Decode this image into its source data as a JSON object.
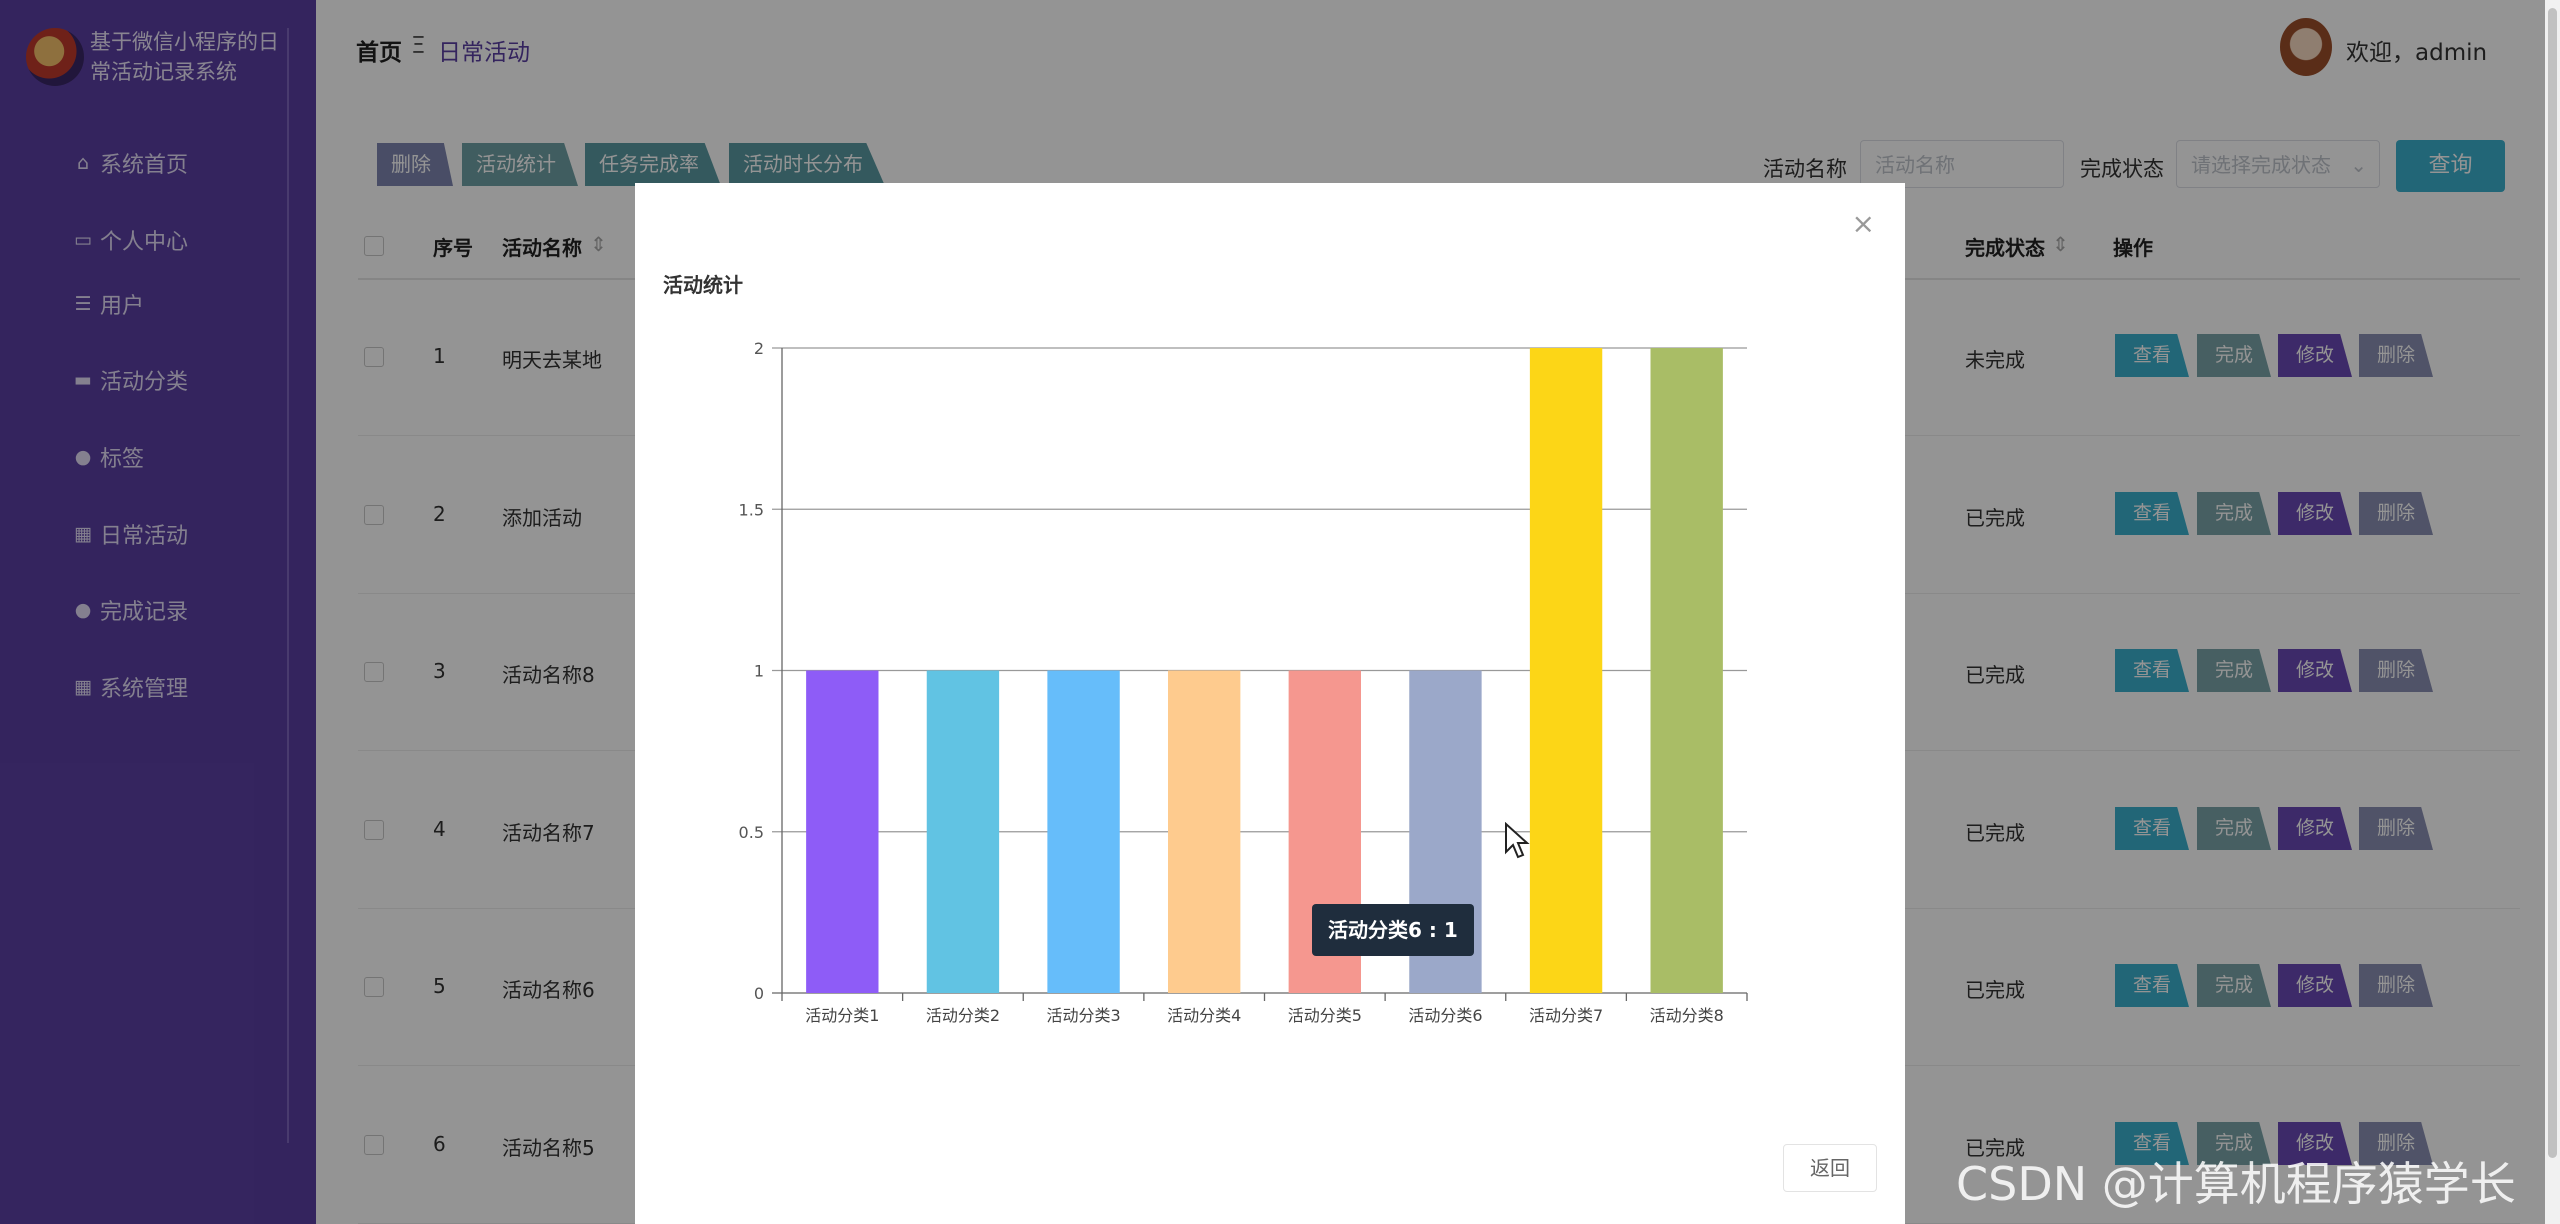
{
  "app": {
    "title": "基于微信小程序的日常活动记录系统"
  },
  "sidebar": {
    "items": [
      {
        "label": "系统首页",
        "icon": "home-icon"
      },
      {
        "label": "个人中心",
        "icon": "calendar-icon"
      },
      {
        "label": "用户",
        "icon": "list-icon"
      },
      {
        "label": "活动分类",
        "icon": "monitor-icon"
      },
      {
        "label": "标签",
        "icon": "person-icon"
      },
      {
        "label": "日常活动",
        "icon": "grid-icon"
      },
      {
        "label": "完成记录",
        "icon": "user-icon"
      },
      {
        "label": "系统管理",
        "icon": "grid-icon"
      }
    ]
  },
  "header": {
    "breadcrumb_home": "首页",
    "breadcrumb_separator": "Ξ",
    "breadcrumb_current": "日常活动",
    "welcome": "欢迎，admin"
  },
  "toolbar": {
    "delete": "删除",
    "stats": "活动统计",
    "completion_rate": "任务完成率",
    "duration": "活动时长分布",
    "name_label": "活动名称",
    "name_placeholder": "活动名称",
    "status_label": "完成状态",
    "status_placeholder": "请选择完成状态",
    "search": "查询"
  },
  "table": {
    "headers": {
      "index": "序号",
      "name": "活动名称",
      "status": "完成状态",
      "actions": "操作"
    },
    "rows": [
      {
        "index": "1",
        "name": "明天去某地",
        "status": "未完成"
      },
      {
        "index": "2",
        "name": "添加活动",
        "status": "已完成"
      },
      {
        "index": "3",
        "name": "活动名称8",
        "status": "已完成"
      },
      {
        "index": "4",
        "name": "活动名称7",
        "status": "已完成"
      },
      {
        "index": "5",
        "name": "活动名称6",
        "status": "已完成"
      },
      {
        "index": "6",
        "name": "活动名称5",
        "status": "已完成"
      }
    ],
    "actions": {
      "view": "查看",
      "complete": "完成",
      "edit": "修改",
      "delete": "删除"
    }
  },
  "modal": {
    "title": "活动统计",
    "close": "×",
    "return": "返回",
    "tooltip": "活动分类6 : 1"
  },
  "chart_data": {
    "type": "bar",
    "title": "活动统计",
    "categories": [
      "活动分类1",
      "活动分类2",
      "活动分类3",
      "活动分类4",
      "活动分类5",
      "活动分类6",
      "活动分类7",
      "活动分类8"
    ],
    "values": [
      1,
      1,
      1,
      1,
      1,
      1,
      2,
      2
    ],
    "colors": [
      "#8e5cf7",
      "#61c3e3",
      "#66bdfa",
      "#fecb8e",
      "#f5978f",
      "#9ba8c9",
      "#fcd617",
      "#a9bd66"
    ],
    "ylim": [
      0,
      2
    ],
    "yticks": [
      "0",
      "0.5",
      "1",
      "1.5",
      "2"
    ],
    "grid": true
  },
  "colors": {
    "sidebar": "#5b3fa3",
    "accent": "#5b3fa3",
    "view": "#3bb0cd",
    "complete": "#7aa4aa",
    "edit": "#6a49b5",
    "delete": "#8b8fb3"
  },
  "watermark": "CSDN @计算机程序猿学长"
}
